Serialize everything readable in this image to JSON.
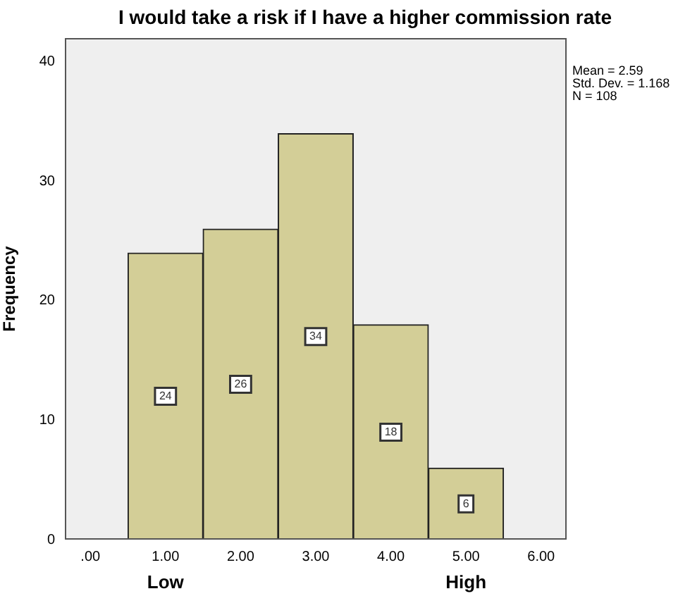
{
  "chart_data": {
    "type": "histogram",
    "title": "I would take a risk if I have a higher commission rate",
    "ylabel": "Frequency",
    "bins": [
      0.5,
      1.5,
      2.5,
      3.5,
      4.5,
      5.5
    ],
    "values": [
      24,
      26,
      34,
      18,
      6
    ],
    "color": "#d3ce97",
    "xlim": [
      -0.34,
      6.34
    ],
    "xticks": [
      {
        "value": 0,
        "label": ".00"
      },
      {
        "value": 1,
        "label": "1.00"
      },
      {
        "value": 2,
        "label": "2.00"
      },
      {
        "value": 3,
        "label": "3.00"
      },
      {
        "value": 4,
        "label": "4.00"
      },
      {
        "value": 5,
        "label": "5.00"
      },
      {
        "value": 6,
        "label": "6.00"
      }
    ],
    "ylim": [
      0,
      42
    ],
    "yticks": [
      0,
      10,
      20,
      30,
      40
    ],
    "grid": false,
    "legend": false,
    "data_labels": true,
    "annotations": [
      "Mean = 2.59",
      "Std. Dev. = 1.168",
      "N = 108",
      "Low",
      "High"
    ]
  }
}
